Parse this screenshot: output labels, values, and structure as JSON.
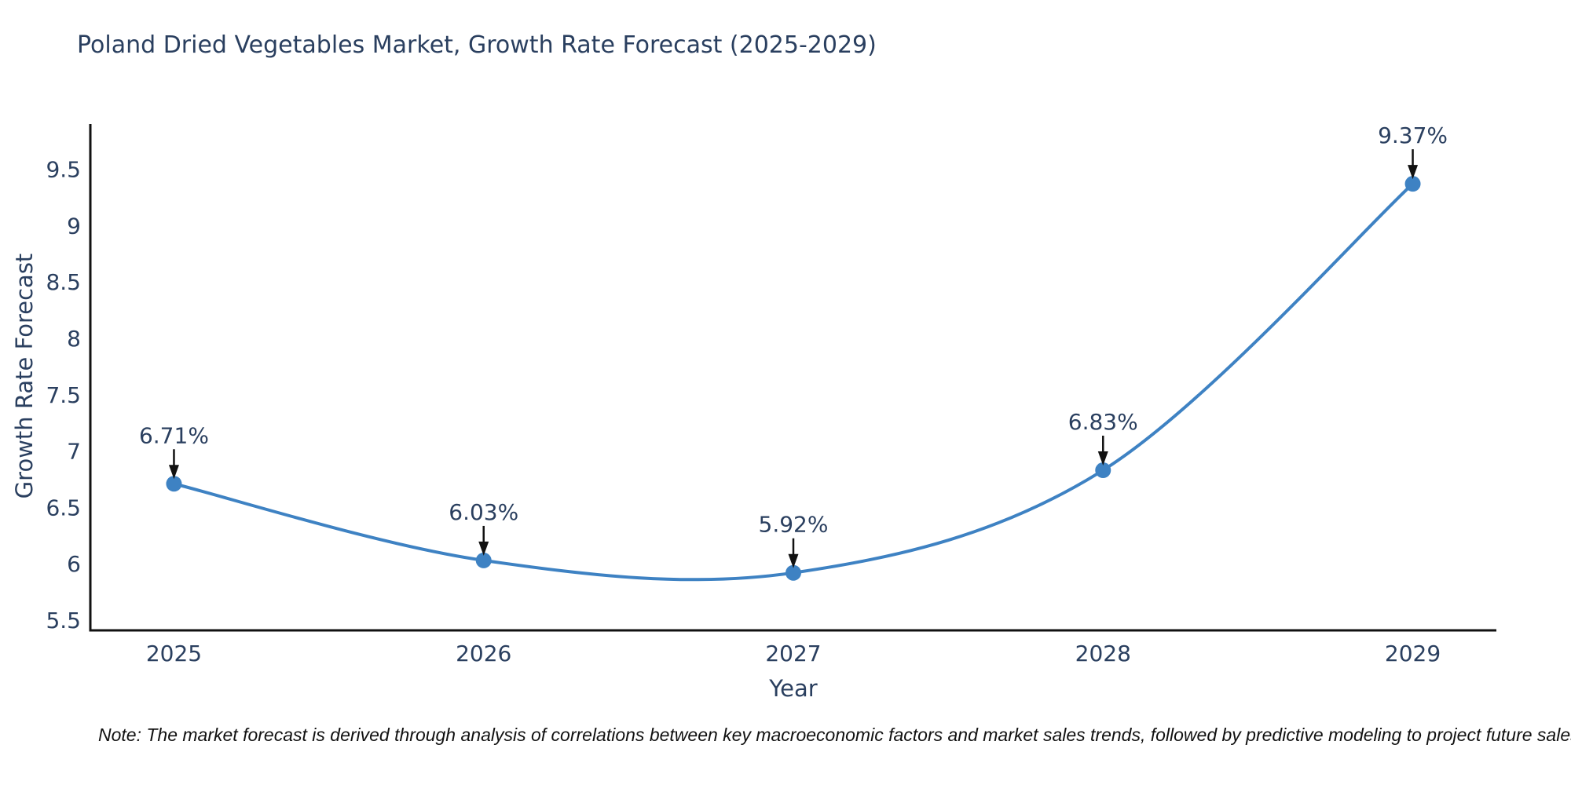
{
  "note": "Note: The market forecast is derived through analysis of correlations between key macroeconomic factors and market sales trends, followed by predictive modeling to project future sales",
  "colors": {
    "text": "#2a3f5f",
    "axis_line": "#111111",
    "background": "#ffffff"
  },
  "chart_data": {
    "type": "line",
    "title": "Poland Dried Vegetables Market, Growth Rate Forecast (2025-2029)",
    "xlabel": "Year",
    "ylabel": "Growth Rate Forecast",
    "x": [
      2025,
      2026,
      2027,
      2028,
      2029
    ],
    "y": [
      6.71,
      6.03,
      5.92,
      6.83,
      9.37
    ],
    "point_labels": [
      "6.71%",
      "6.03%",
      "5.92%",
      "6.83%",
      "9.37%"
    ],
    "xtick_labels": [
      "2025",
      "2026",
      "2027",
      "2028",
      "2029"
    ],
    "ytick_labels": [
      "5.5",
      "6",
      "6.5",
      "7",
      "7.5",
      "8",
      "8.5",
      "9",
      "9.5"
    ],
    "xlim": [
      2024.73,
      2029.27
    ],
    "ylim": [
      5.41,
      9.9
    ],
    "line_shape": "spline",
    "line_color": "#3e82c3",
    "marker_color": "#3e82c3",
    "annotation_arrow_color": "#111111",
    "grid": false,
    "legend_position": "none"
  }
}
